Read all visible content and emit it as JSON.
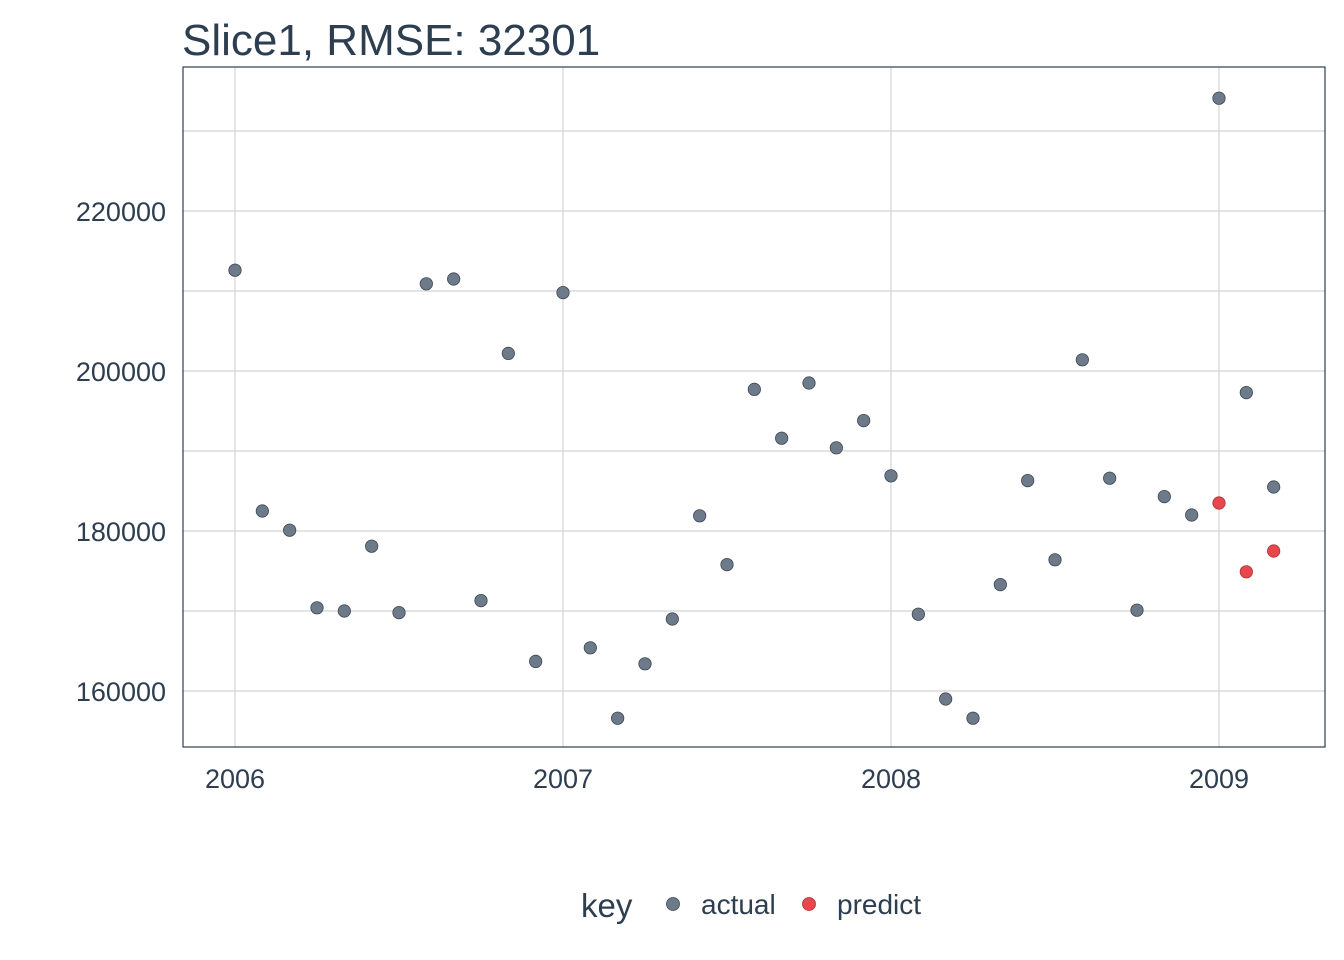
{
  "chart_data": {
    "type": "scatter",
    "title": "Slice1, RMSE: 32301",
    "xlabel": "",
    "ylabel": "",
    "x_ticks": [
      "2006",
      "2007",
      "2008",
      "2009"
    ],
    "y_ticks": [
      "160000",
      "180000",
      "200000",
      "220000"
    ],
    "xlim": [
      "2005-11",
      "2009-05"
    ],
    "ylim": [
      153000,
      237000
    ],
    "grid": true,
    "legend": {
      "title": "key",
      "position": "bottom",
      "entries": [
        {
          "label": "actual",
          "color": "#6c7a89"
        },
        {
          "label": "predict",
          "color": "#e8474c"
        }
      ]
    },
    "series": [
      {
        "name": "actual",
        "color": "#6c7a89",
        "points": [
          {
            "x": "2006-01",
            "y": 212600
          },
          {
            "x": "2006-02",
            "y": 182500
          },
          {
            "x": "2006-03",
            "y": 180100
          },
          {
            "x": "2006-04",
            "y": 170400
          },
          {
            "x": "2006-05",
            "y": 170000
          },
          {
            "x": "2006-06",
            "y": 178100
          },
          {
            "x": "2006-07",
            "y": 169800
          },
          {
            "x": "2006-08",
            "y": 210900
          },
          {
            "x": "2006-09",
            "y": 211500
          },
          {
            "x": "2006-10",
            "y": 171300
          },
          {
            "x": "2006-11",
            "y": 202200
          },
          {
            "x": "2006-12",
            "y": 163700
          },
          {
            "x": "2007-01",
            "y": 209800
          },
          {
            "x": "2007-02",
            "y": 165400
          },
          {
            "x": "2007-03",
            "y": 156600
          },
          {
            "x": "2007-04",
            "y": 163400
          },
          {
            "x": "2007-05",
            "y": 169000
          },
          {
            "x": "2007-06",
            "y": 181900
          },
          {
            "x": "2007-07",
            "y": 175800
          },
          {
            "x": "2007-08",
            "y": 197700
          },
          {
            "x": "2007-09",
            "y": 191600
          },
          {
            "x": "2007-10",
            "y": 198500
          },
          {
            "x": "2007-11",
            "y": 190400
          },
          {
            "x": "2007-12",
            "y": 193800
          },
          {
            "x": "2008-01",
            "y": 186900
          },
          {
            "x": "2008-02",
            "y": 169600
          },
          {
            "x": "2008-03",
            "y": 159000
          },
          {
            "x": "2008-04",
            "y": 156600
          },
          {
            "x": "2008-05",
            "y": 173300
          },
          {
            "x": "2008-06",
            "y": 186300
          },
          {
            "x": "2008-07",
            "y": 176400
          },
          {
            "x": "2008-08",
            "y": 201400
          },
          {
            "x": "2008-09",
            "y": 186600
          },
          {
            "x": "2008-10",
            "y": 170100
          },
          {
            "x": "2008-11",
            "y": 184300
          },
          {
            "x": "2008-12",
            "y": 182000
          },
          {
            "x": "2009-01",
            "y": 234100
          },
          {
            "x": "2009-02",
            "y": 197300
          },
          {
            "x": "2009-03",
            "y": 185500
          }
        ]
      },
      {
        "name": "predict",
        "color": "#e8474c",
        "points": [
          {
            "x": "2009-01",
            "y": 183500
          },
          {
            "x": "2009-02",
            "y": 174900
          },
          {
            "x": "2009-03",
            "y": 177500
          }
        ]
      }
    ]
  }
}
